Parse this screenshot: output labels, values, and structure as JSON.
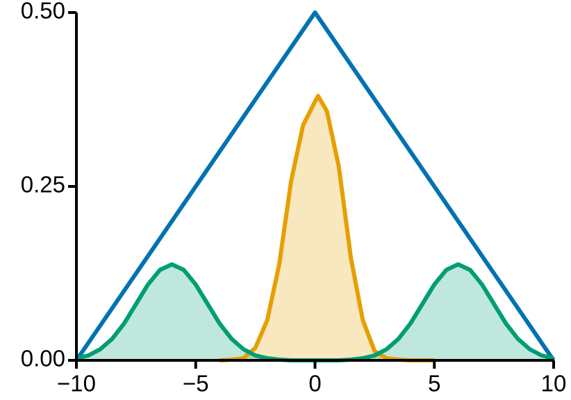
{
  "chart_data": {
    "type": "line",
    "xlim": [
      -10,
      10
    ],
    "ylim": [
      0,
      0.5
    ],
    "xticks": [
      {
        "value": -10,
        "label": "−10"
      },
      {
        "value": -5,
        "label": "−5"
      },
      0,
      5,
      10
    ],
    "yticks": [
      {
        "value": 0,
        "label": "0.00"
      },
      {
        "value": 0.25,
        "label": "0.25"
      },
      {
        "value": 0.5,
        "label": "0.50"
      }
    ],
    "series": [
      {
        "color": "#0072b2",
        "fill": false,
        "x": [
          -10,
          0,
          10
        ],
        "values": [
          0,
          0.5,
          0
        ]
      },
      {
        "color": "#e69f00",
        "fill": true,
        "x": [
          -4,
          -3.5,
          -3,
          -2.5,
          -2,
          -1.5,
          -1,
          -0.5,
          0,
          0.13,
          0.5,
          1,
          1.5,
          2,
          2.5,
          3,
          3.5,
          4,
          4.5,
          5
        ],
        "values": [
          0,
          0.001,
          0.003,
          0.018,
          0.058,
          0.138,
          0.258,
          0.338,
          0.372,
          0.38,
          0.358,
          0.278,
          0.148,
          0.058,
          0.013,
          0.003,
          0.001,
          0,
          0,
          0
        ]
      },
      {
        "color": "#009e73",
        "fill": true,
        "x": [
          -10,
          -9.5,
          -9,
          -8.5,
          -8,
          -7.5,
          -7,
          -6.5,
          -6,
          -5.5,
          -5,
          -4.5,
          -4,
          -3.5,
          -3,
          -2.5,
          -2,
          -1.5,
          -1,
          -0.5,
          0,
          0.5,
          1,
          1.5,
          2,
          2.5,
          3,
          3.5,
          4,
          4.5,
          5,
          5.5,
          6,
          6.5,
          7,
          7.5,
          8,
          8.5,
          9,
          9.5,
          10
        ],
        "values": [
          0.003,
          0.007,
          0.016,
          0.031,
          0.053,
          0.081,
          0.109,
          0.13,
          0.138,
          0.13,
          0.109,
          0.081,
          0.053,
          0.031,
          0.016,
          0.007,
          0.003,
          0.001,
          0,
          0,
          0,
          0,
          0,
          0.001,
          0.003,
          0.007,
          0.016,
          0.031,
          0.053,
          0.081,
          0.109,
          0.13,
          0.138,
          0.13,
          0.109,
          0.081,
          0.053,
          0.031,
          0.016,
          0.007,
          0.003
        ]
      }
    ]
  }
}
